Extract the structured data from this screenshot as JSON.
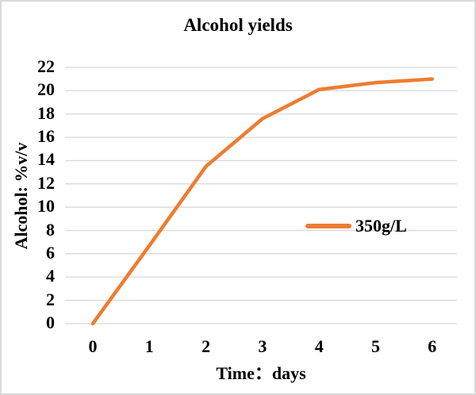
{
  "chart_data": {
    "type": "line",
    "title": "Alcohol yields",
    "xlabel": "Time：days",
    "ylabel": "Alcohol: %v/v",
    "categories": [
      "0",
      "1",
      "2",
      "3",
      "4",
      "5",
      "6"
    ],
    "series": [
      {
        "name": "350g/L",
        "color": "#ED7D31",
        "values": [
          0,
          6.7,
          13.5,
          17.6,
          20.1,
          20.7,
          21.0
        ]
      }
    ],
    "ylim": [
      0,
      22
    ],
    "y_tick_step": 2,
    "y_tick_labels": [
      "0",
      "2",
      "4",
      "6",
      "8",
      "10",
      "12",
      "14",
      "16",
      "18",
      "20",
      "22"
    ],
    "grid": "horizontal",
    "gridline_color": "#D9D9D9",
    "text_color": "#000000",
    "background_color": "#FFFFFF",
    "border_color": "#D9D9D9",
    "legend_position": "center-right-inside"
  }
}
